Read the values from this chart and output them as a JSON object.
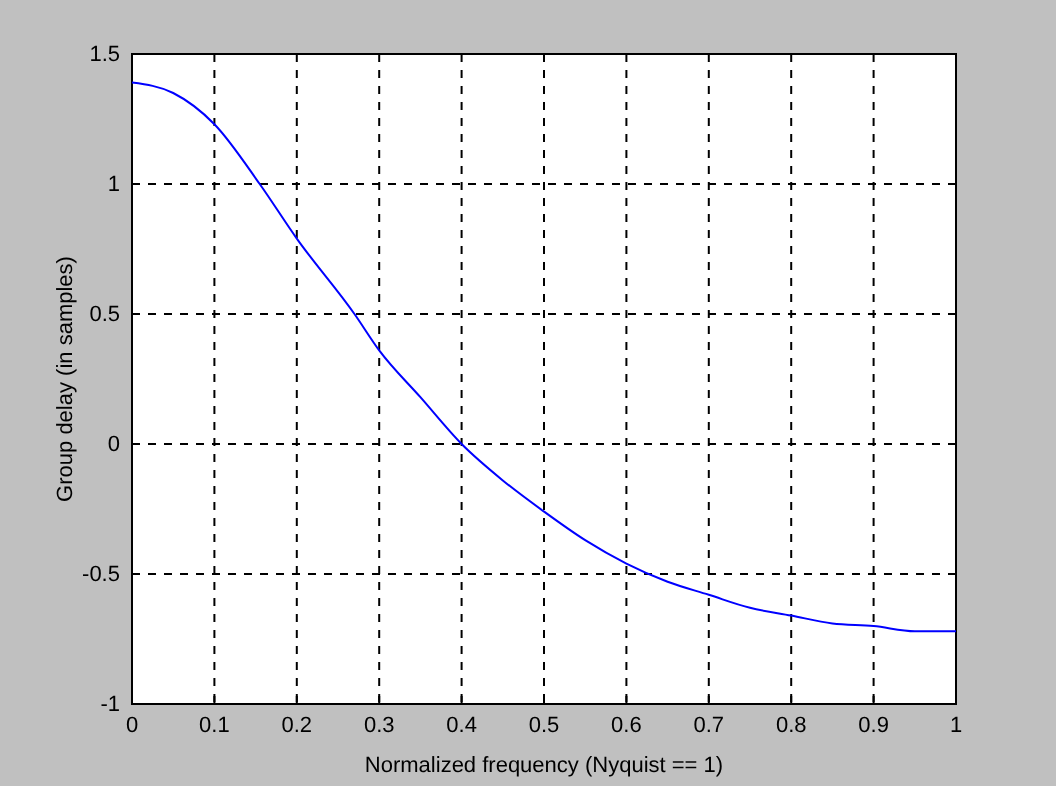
{
  "chart_data": {
    "type": "line",
    "xlabel": "Normalized frequency (Nyquist == 1)",
    "ylabel": "Group delay (in samples)",
    "x": [
      0,
      0.05,
      0.1,
      0.155,
      0.2,
      0.27,
      0.3,
      0.35,
      0.4,
      0.45,
      0.5,
      0.55,
      0.6,
      0.65,
      0.7,
      0.75,
      0.8,
      0.85,
      0.9,
      0.95,
      1
    ],
    "series": [
      {
        "color": "#0000ff",
        "values": [
          1.39,
          1.35,
          1.23,
          1.0,
          0.79,
          0.5,
          0.36,
          0.18,
          0.0,
          -0.14,
          -0.26,
          -0.37,
          -0.46,
          -0.53,
          -0.58,
          -0.63,
          -0.66,
          -0.69,
          -0.7,
          -0.72,
          -0.72
        ]
      }
    ],
    "xlim": [
      0,
      1
    ],
    "xticks": [
      0,
      0.1,
      0.2,
      0.3,
      0.4,
      0.5,
      0.6,
      0.7,
      0.8,
      0.9,
      1
    ],
    "ylim": [
      -1,
      1.5
    ],
    "yticks": [
      -1,
      -0.5,
      0,
      0.5,
      1,
      1.5
    ],
    "grid": true,
    "line_style": "solid",
    "marker": "none"
  }
}
